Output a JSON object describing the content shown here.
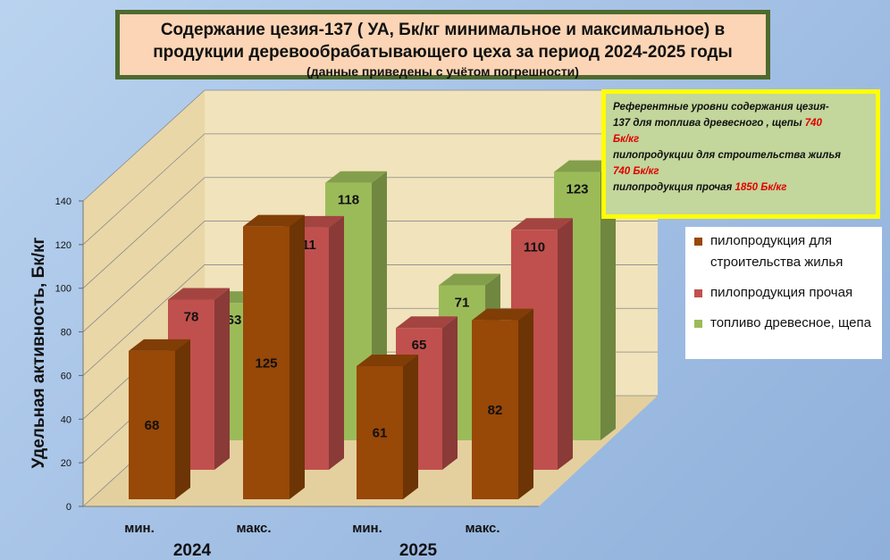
{
  "title": {
    "line1": "Содержание цезия-137 ( УА, Бк/кг минимальное и максимальное) в",
    "line2": "продукции деревообрабатывающего цеха за период 2024-2025 годы",
    "subtitle": "(данные приведены с учётом погрешности)"
  },
  "reference": {
    "l1": "Референтные уровни  содержания цезия-",
    "l2a": "137  для топлива  древесного , щепы",
    "l2v": "740",
    "l3v": "Бк/кг",
    "l4": "пилопродукции  для строительства жилья",
    "l5v": "740  Бк/кг",
    "l6a": "пилопродукция прочая",
    "l6v": "1850  Бк/кг"
  },
  "chart_data": {
    "type": "bar",
    "categories": [
      "мин.",
      "макс.",
      "мин.",
      "макс."
    ],
    "groups": [
      {
        "label": "2024",
        "categories": [
          "мин.",
          "макс."
        ]
      },
      {
        "label": "2025",
        "categories": [
          "мин.",
          "макс."
        ]
      }
    ],
    "series": [
      {
        "name": "пилопродукция для строительства жилья",
        "values": [
          68,
          125,
          61,
          82
        ],
        "color": "#984807"
      },
      {
        "name": "пилопродукция прочая",
        "values": [
          78,
          111,
          65,
          110
        ],
        "color": "#c0504d"
      },
      {
        "name": "топливо древесное, щепа",
        "values": [
          63,
          118,
          71,
          123
        ],
        "color": "#9bbb59"
      }
    ],
    "ylabel": "Удельная активность, Бк/кг",
    "ylim": [
      0,
      140
    ],
    "yticks": [
      0,
      20,
      40,
      60,
      80,
      100,
      120,
      140
    ],
    "grid": true,
    "legend_position": "right",
    "colors": {
      "background": "#a6c2e6",
      "wall": "#f1e3bb",
      "title_bg": "#fbd5b5",
      "title_border": "#4e6a2e",
      "reference_bg": "#c3d69b",
      "reference_border": "#ffff00",
      "reference_accent": "#e00000"
    }
  }
}
